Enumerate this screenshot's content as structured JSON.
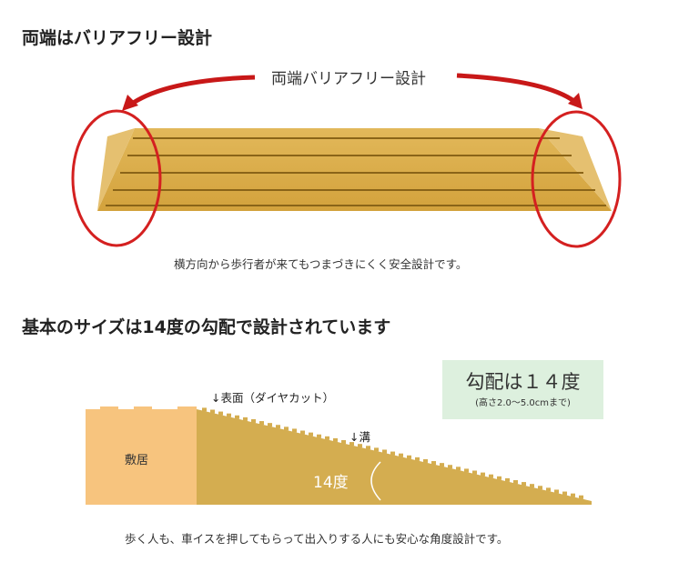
{
  "section1": {
    "heading": "両端はバリアフリー設計",
    "arrow_label": "両端バリアフリー設計",
    "caption": "横方向から歩行者が来てもつまづきにくく安全設計です。",
    "colors": {
      "ramp": "#d9ab45",
      "circle": "#d42020"
    }
  },
  "section2": {
    "heading": "基本のサイズは14度の勾配で設計されています",
    "badge_title": "勾配は１４度",
    "badge_sub": "(高さ2.0～5.0cmまで)",
    "label_surface": "↓表面（ダイヤカット）",
    "label_groove": "↓溝",
    "label_sill": "敷居",
    "label_angle": "14度",
    "caption": "歩く人も、車イスを押してもらって出入りする人にも安心な角度設計です。",
    "colors": {
      "sill": "#f7c47e",
      "ramp": "#d4ad50",
      "badge": "#ddf0de"
    }
  }
}
